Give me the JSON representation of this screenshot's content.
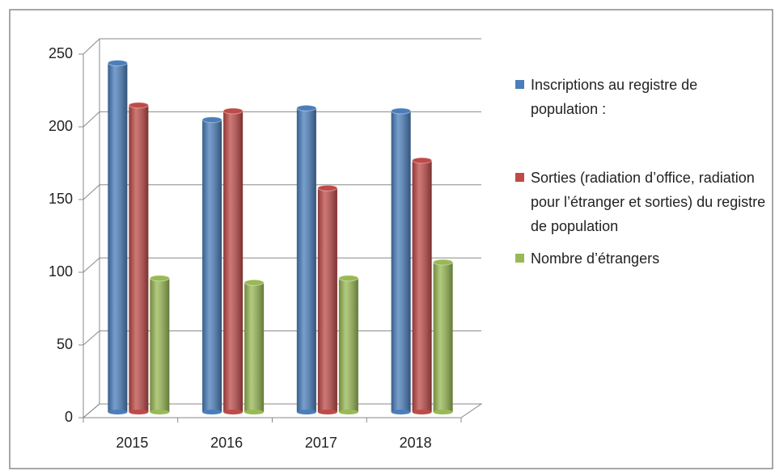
{
  "chart_data": {
    "type": "bar",
    "categories": [
      "2015",
      "2016",
      "2017",
      "2018"
    ],
    "series": [
      {
        "name": "Inscriptions au registre de population :",
        "color": "#4a7ebb",
        "values": [
          240,
          201,
          209,
          207
        ]
      },
      {
        "name": "Sorties (radiation d’office, radiation pour l’étranger et sorties) du registre de population",
        "color": "#be4b48",
        "values": [
          211,
          207,
          154,
          173
        ]
      },
      {
        "name": "Nombre d’étrangers",
        "color": "#98b954",
        "values": [
          92,
          89,
          92,
          103
        ]
      }
    ],
    "ylim": [
      0,
      250
    ],
    "yticks": [
      0,
      50,
      100,
      150,
      200,
      250
    ],
    "grid": true,
    "legend": "right"
  }
}
